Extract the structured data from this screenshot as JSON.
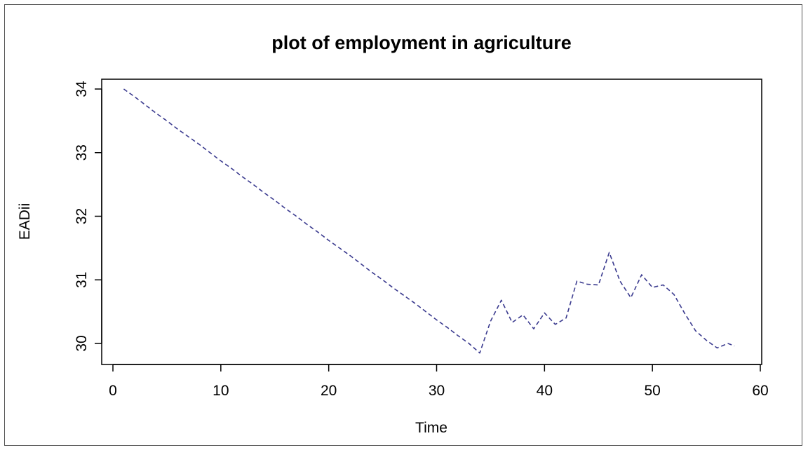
{
  "chart_data": {
    "type": "line",
    "title": "plot of employment in agriculture",
    "xlabel": "Time",
    "ylabel": "EADii",
    "xlim": [
      0,
      60
    ],
    "ylim": [
      29.7,
      34.15
    ],
    "xticks": [
      0,
      10,
      20,
      30,
      40,
      50,
      60
    ],
    "yticks": [
      30,
      31,
      32,
      33,
      34
    ],
    "grid": false,
    "line_style": "dashed",
    "line_color": "#3b3b8f",
    "series": [
      {
        "x": [
          1,
          2,
          3,
          4,
          5,
          6,
          7,
          8,
          9,
          10,
          11,
          12,
          13,
          14,
          15,
          16,
          17,
          18,
          19,
          20,
          21,
          22,
          23,
          24,
          25,
          26,
          27,
          28,
          29,
          30,
          31,
          32,
          33,
          34,
          35,
          36,
          37,
          38,
          39,
          40,
          41,
          42,
          43,
          44,
          45,
          46,
          47,
          48,
          49,
          50,
          51,
          52,
          53,
          54,
          55,
          56,
          57,
          57.6
        ],
        "values": [
          34.0,
          33.88,
          33.75,
          33.62,
          33.5,
          33.37,
          33.25,
          33.13,
          33.0,
          32.87,
          32.75,
          32.62,
          32.5,
          32.37,
          32.25,
          32.12,
          32.0,
          31.87,
          31.75,
          31.62,
          31.5,
          31.38,
          31.25,
          31.12,
          31.0,
          30.87,
          30.75,
          30.63,
          30.5,
          30.37,
          30.25,
          30.12,
          30.0,
          29.85,
          30.35,
          30.68,
          30.33,
          30.45,
          30.23,
          30.48,
          30.3,
          30.4,
          30.98,
          30.93,
          30.92,
          31.43,
          30.98,
          30.72,
          31.08,
          30.88,
          30.92,
          30.77,
          30.47,
          30.2,
          30.05,
          29.93,
          30.0,
          29.96
        ]
      }
    ]
  }
}
